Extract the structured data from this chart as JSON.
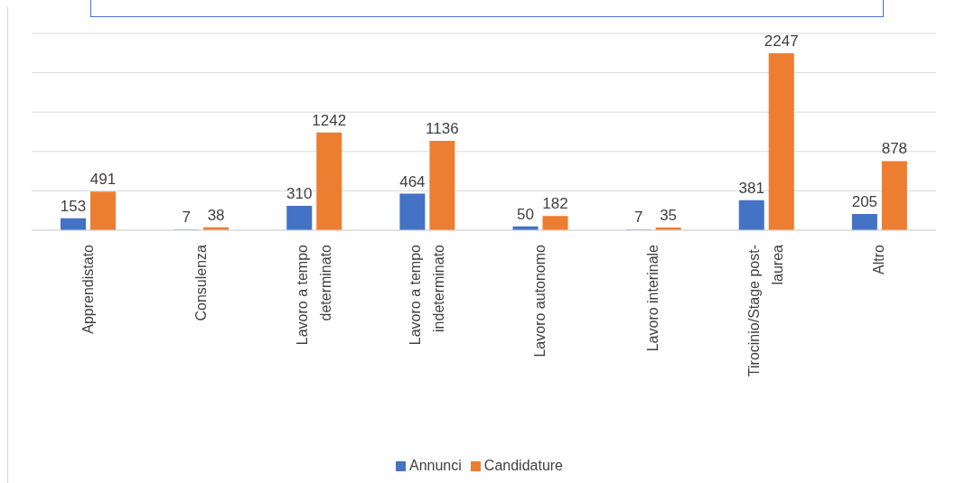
{
  "chart_data": {
    "type": "bar",
    "categories": [
      "Apprendistato",
      "Consulenza",
      "Lavoro a tempo determinato",
      "Lavoro a tempo indeterminato",
      "Lavoro autonomo",
      "Lavoro interinale",
      "Tirocinio/Stage post-laurea",
      "Altro"
    ],
    "series": [
      {
        "name": "Annunci",
        "color": "#4472c4",
        "values": [
          153,
          7,
          310,
          464,
          50,
          7,
          381,
          205
        ]
      },
      {
        "name": "Candidature",
        "color": "#ed7d31",
        "values": [
          491,
          38,
          1242,
          1136,
          182,
          35,
          2247,
          878
        ]
      }
    ],
    "ylim": [
      0,
      2500
    ],
    "yticks": [
      {
        "value": 0,
        "label": null
      },
      {
        "value": 500,
        "label": null
      },
      {
        "value": 1000,
        "label": null
      },
      {
        "value": 1500,
        "label": null
      },
      {
        "value": 2000,
        "label": null
      },
      {
        "value": 2500,
        "label": null
      }
    ],
    "grid": "y",
    "data_labels": true,
    "legend": "bottom"
  }
}
